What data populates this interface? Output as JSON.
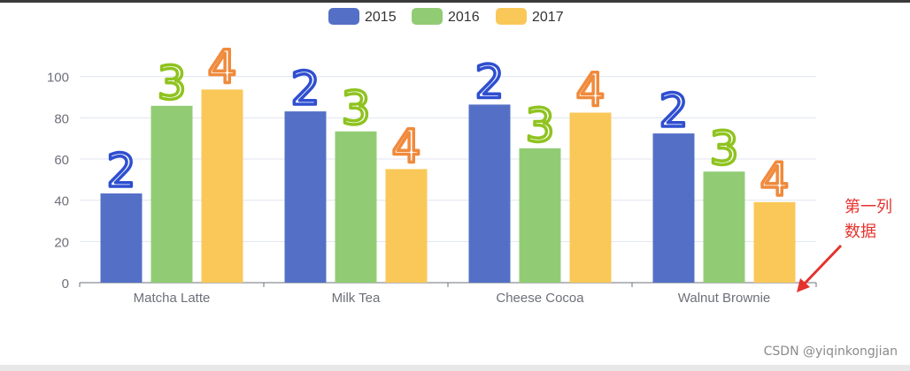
{
  "chart_data": {
    "type": "bar",
    "categories": [
      "Matcha Latte",
      "Milk Tea",
      "Cheese Cocoa",
      "Walnut Brownie"
    ],
    "series": [
      {
        "name": "2015",
        "color": "#5470c6",
        "values": [
          43.3,
          83.1,
          86.4,
          72.4
        ]
      },
      {
        "name": "2016",
        "color": "#91cc75",
        "values": [
          85.8,
          73.4,
          65.2,
          53.9
        ]
      },
      {
        "name": "2017",
        "color": "#fac858",
        "values": [
          93.7,
          55.1,
          82.5,
          39.1
        ]
      }
    ],
    "ylim": [
      0,
      120
    ],
    "yticks": [
      0,
      20,
      40,
      60,
      80,
      100
    ],
    "grid": true,
    "legend": "top-center",
    "annotations": {
      "handwritten": [
        {
          "text": "2",
          "color": "#2f4fd0"
        },
        {
          "text": "3",
          "color": "#8fc31f"
        },
        {
          "text": "4",
          "color": "#f08a3c"
        }
      ],
      "note": "第一列\n数据",
      "note_color": "#e5322d"
    }
  },
  "watermark": "CSDN @yiqinkongjian"
}
